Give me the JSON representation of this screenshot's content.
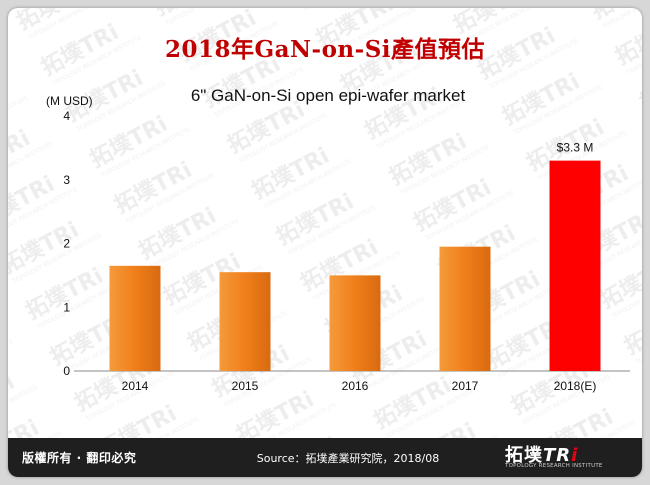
{
  "page_title": "2018年GaN-on-Si產值預估",
  "footer": {
    "copyright": "版權所有 · 翻印必究",
    "source": "Source：拓墣產業研究院，2018/08"
  },
  "logo": {
    "text_cjk": "拓墣",
    "text_tr": "TR",
    "text_i": "i",
    "subtitle": "TOPOLOGY RESEARCH INSTITUTE"
  },
  "colors": {
    "title": "#c00000",
    "bar_orange": "#f07f1a",
    "bar_highlight": "#ff0000",
    "footer_bg": "#1f1f1f"
  },
  "chart_data": {
    "type": "bar",
    "title": "6\" GaN-on-Si open epi-wafer market",
    "ylabel": "(M USD)",
    "xlabel": "",
    "categories": [
      "2014",
      "2015",
      "2016",
      "2017",
      "2018(E)"
    ],
    "values": [
      1.65,
      1.55,
      1.5,
      1.95,
      3.3
    ],
    "ylim": [
      0,
      4
    ],
    "yticks": [
      "0",
      "1",
      "2",
      "3",
      "4"
    ],
    "highlight_index": 4,
    "annotations": [
      {
        "category": "2018(E)",
        "text": "$3.3 M"
      }
    ],
    "grid": false,
    "legend": "none"
  }
}
